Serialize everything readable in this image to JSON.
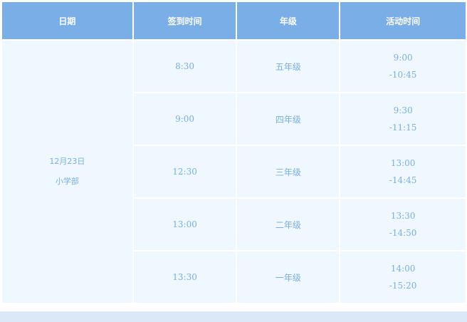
{
  "colors": {
    "header_bg": "#7aaee6",
    "cell_bg": "#f0f8ff",
    "text": "#7aaee6"
  },
  "headers": [
    "日期",
    "签到时间",
    "年级",
    "活动时间"
  ],
  "date": {
    "line1": "12月23日",
    "line2": "小学部"
  },
  "rows": [
    {
      "checkin": "8:30",
      "grade": "五年级",
      "start": "9:00",
      "end": "-10:45"
    },
    {
      "checkin": "9:00",
      "grade": "四年级",
      "start": "9:30",
      "end": "-11:15"
    },
    {
      "checkin": "12:30",
      "grade": "三年级",
      "start": "13:00",
      "end": "-14:45"
    },
    {
      "checkin": "13:00",
      "grade": "二年级",
      "start": "13:30",
      "end": "-14:50"
    },
    {
      "checkin": "13:30",
      "grade": "一年级",
      "start": "14:00",
      "end": "-15:20"
    }
  ]
}
